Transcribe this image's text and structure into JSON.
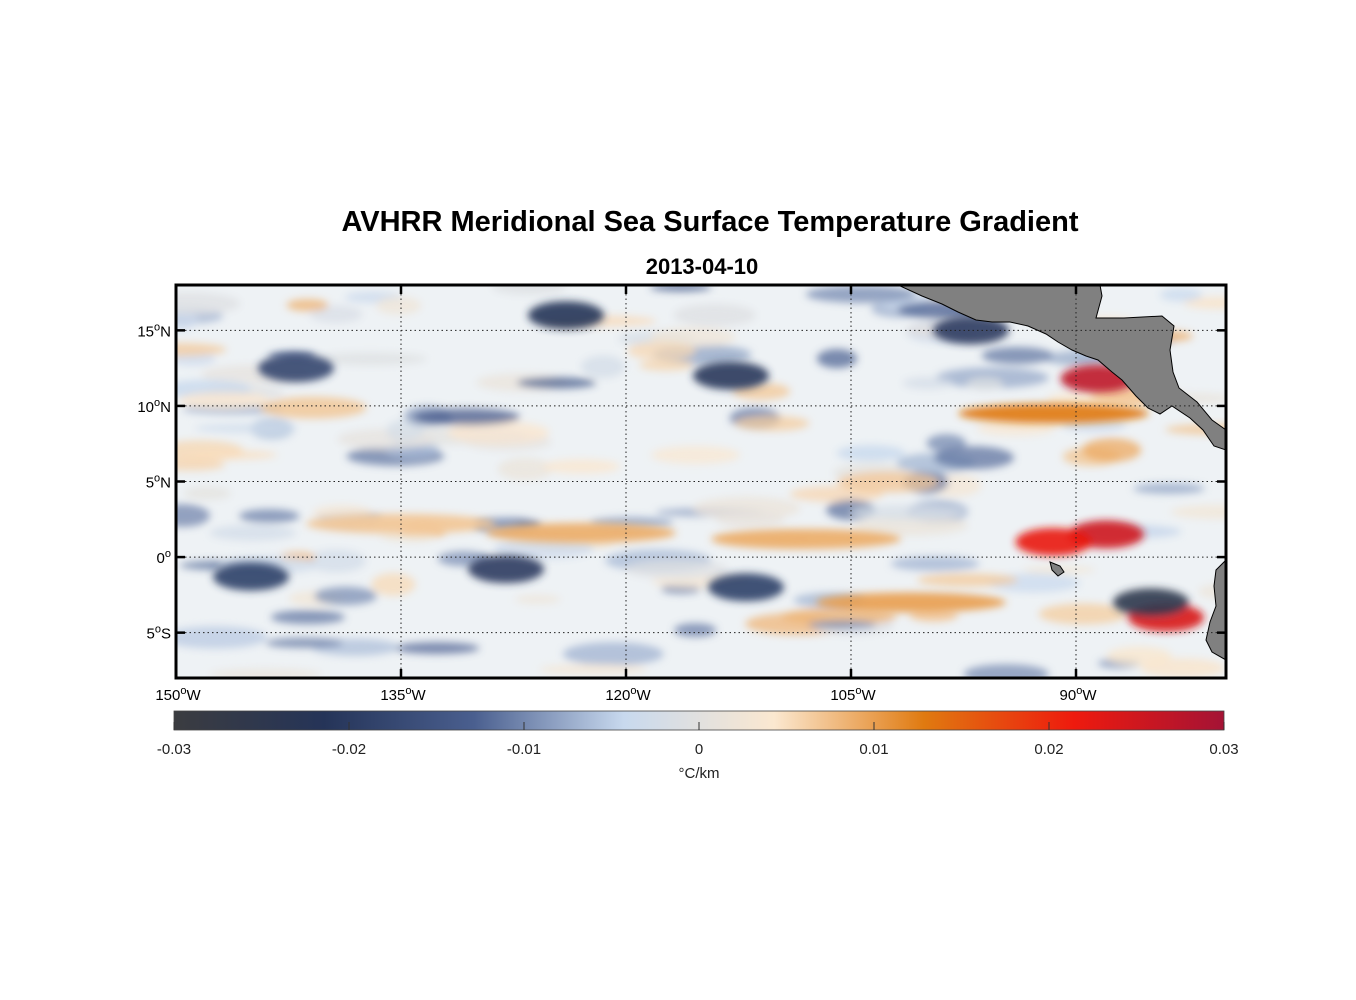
{
  "title": "AVHRR Meridional Sea Surface Temperature Gradient",
  "subtitle": "2013-04-10",
  "map": {
    "projection": "equirectangular",
    "lon_range": [
      -150,
      -80
    ],
    "lat_range": [
      -8,
      18
    ],
    "grid": "dotted",
    "land_color": "#808080",
    "lon_ticks": [
      {
        "deg": "150",
        "hemi": "W",
        "value": -150
      },
      {
        "deg": "135",
        "hemi": "W",
        "value": -135
      },
      {
        "deg": "120",
        "hemi": "W",
        "value": -120
      },
      {
        "deg": "105",
        "hemi": "W",
        "value": -105
      },
      {
        "deg": "90",
        "hemi": "W",
        "value": -90
      }
    ],
    "lat_ticks": [
      {
        "deg": "15",
        "hemi": "N",
        "value": 15
      },
      {
        "deg": "10",
        "hemi": "N",
        "value": 10
      },
      {
        "deg": "5",
        "hemi": "N",
        "value": 5
      },
      {
        "deg": "0",
        "hemi": "",
        "value": 0
      },
      {
        "deg": "5",
        "hemi": "S",
        "value": -5
      }
    ],
    "features": [
      {
        "lon": -123,
        "lat": 1.6,
        "value": 0.009
      },
      {
        "lon": -108,
        "lat": 1.2,
        "value": 0.009
      },
      {
        "lon": -135,
        "lat": 2.2,
        "value": 0.007
      },
      {
        "lon": -145,
        "lat": -1.3,
        "value": -0.019
      },
      {
        "lon": -128,
        "lat": -0.8,
        "value": -0.02
      },
      {
        "lon": -112,
        "lat": -2.0,
        "value": -0.019
      },
      {
        "lon": -88,
        "lat": 1.5,
        "value": 0.025
      },
      {
        "lon": -91.5,
        "lat": 1.0,
        "value": 0.022
      },
      {
        "lon": -88.5,
        "lat": 11.8,
        "value": 0.027
      },
      {
        "lon": -91.5,
        "lat": 9.5,
        "value": 0.013
      },
      {
        "lon": -84,
        "lat": -4.0,
        "value": 0.024
      },
      {
        "lon": -85,
        "lat": -3.0,
        "value": -0.025
      },
      {
        "lon": -124,
        "lat": 16.0,
        "value": -0.022
      },
      {
        "lon": -113,
        "lat": 12.0,
        "value": -0.021
      },
      {
        "lon": -97,
        "lat": 15.0,
        "value": -0.02
      },
      {
        "lon": -142,
        "lat": 12.5,
        "value": -0.018
      },
      {
        "lon": -101,
        "lat": -3.0,
        "value": 0.01
      }
    ]
  },
  "colorbar": {
    "min": -0.03,
    "max": 0.03,
    "ticks": [
      "-0.03",
      "-0.02",
      "-0.01",
      "0",
      "0.01",
      "0.02",
      "0.03"
    ],
    "label": "°C/km",
    "colors": [
      "#3b3c40",
      "#253458",
      "#4a5f8f",
      "#c8d9ee",
      "#fbe8d0",
      "#e07a10",
      "#ee1a0e",
      "#a41335"
    ]
  }
}
